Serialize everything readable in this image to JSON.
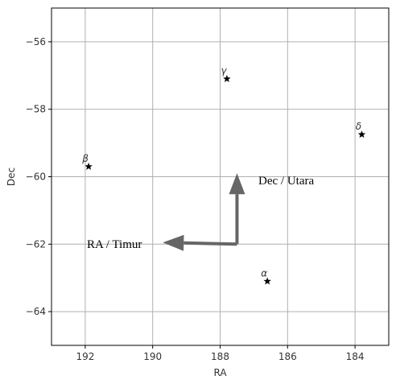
{
  "chart_data": {
    "type": "scatter",
    "xlabel": "RA",
    "ylabel": "Dec",
    "xlim": [
      193,
      183
    ],
    "ylim": [
      -65,
      -55
    ],
    "x_inverted": true,
    "grid": true,
    "xticks": [
      192,
      190,
      188,
      186,
      184
    ],
    "yticks": [
      -56,
      -58,
      -60,
      -62,
      -64
    ],
    "marker": "star",
    "marker_color": "#000000",
    "points": [
      {
        "label": "γ",
        "x": 187.8,
        "y": -57.1
      },
      {
        "label": "δ",
        "x": 183.8,
        "y": -58.75
      },
      {
        "label": "β",
        "x": 191.9,
        "y": -59.7
      },
      {
        "label": "α",
        "x": 186.6,
        "y": -63.1
      }
    ],
    "annotations": [
      {
        "text": "Dec / Utara",
        "arrow_from": [
          187.5,
          -62.0
        ],
        "arrow_to": [
          187.5,
          -59.9
        ],
        "color": "#666666"
      },
      {
        "text": "RA / Timur",
        "arrow_from": [
          187.5,
          -62.0
        ],
        "arrow_to": [
          189.7,
          -61.95
        ],
        "color": "#666666"
      }
    ]
  }
}
